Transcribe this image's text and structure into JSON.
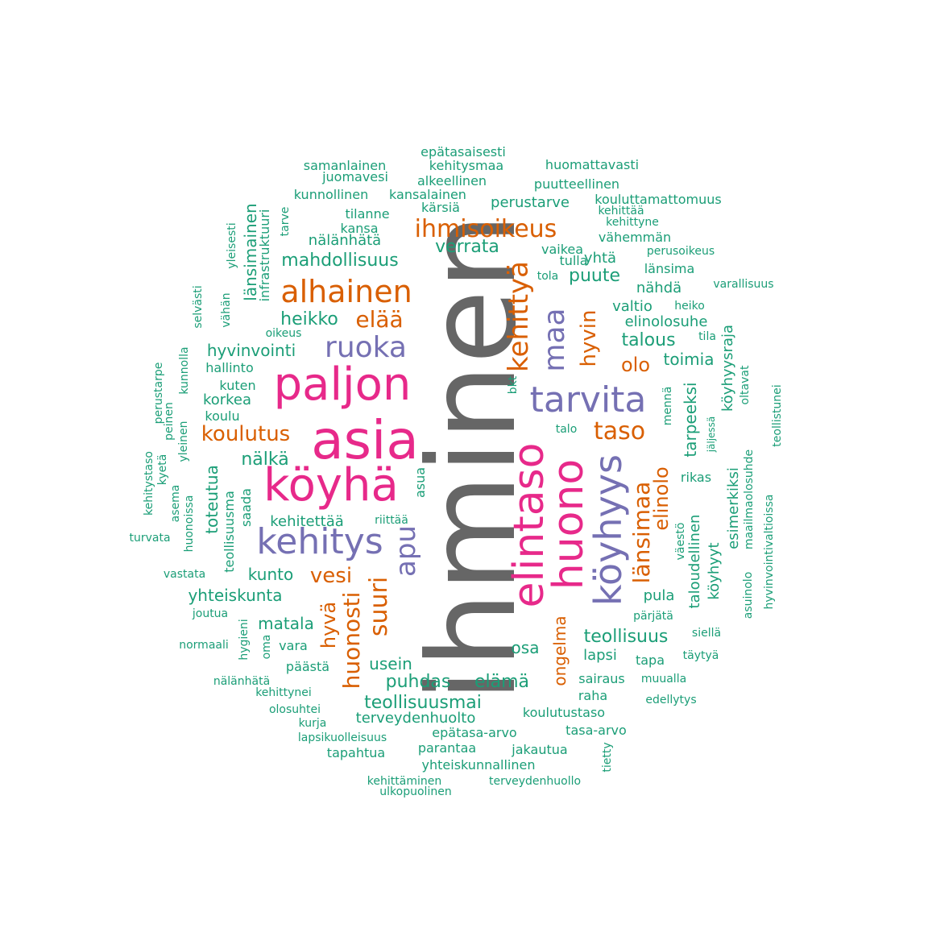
{
  "colors": {
    "gray": "#666666",
    "pink": "#e7298a",
    "purple": "#7570b3",
    "orange": "#d95f02",
    "teal": "#1b9e77"
  },
  "words": [
    "ihminen",
    "asia",
    "köyhä",
    "paljon",
    "elintaso",
    "huono",
    "köyhyys",
    "tarvita",
    "kehitys",
    "alhainen",
    "ruoka",
    "kehittyä",
    "maa",
    "apu",
    "ihmisoikeus",
    "länsimaa",
    "suuri",
    "hyvin",
    "huonosti",
    "taso",
    "elää",
    "koulutus",
    "vesi",
    "elinolo",
    "olo",
    "hyvä",
    "ongelma",
    "nälkä",
    "puhdas",
    "teollisuus",
    "mahdollisuus",
    "talous",
    "verrata",
    "heikko",
    "hyvinvointi",
    "toimia",
    "puute",
    "teollisuusmai",
    "elämä",
    "kunto",
    "yhteiskunta",
    "matala",
    "osa",
    "perustarve",
    "tarpeeksi",
    "valtio",
    "elinolosuhe",
    "nähdä",
    "usein",
    "lapsi",
    "korkea",
    "kehitettää",
    "terveydenhuolto",
    "toteutua",
    "länsimainen",
    "köyhyysraja",
    "esimerkiksi",
    "taloudellinen",
    "pula",
    "köyhyyt",
    "yhtä",
    "vähemmän",
    "koulutustaso",
    "rikas",
    "tilanne",
    "kansalainen",
    "nälänhätä",
    "epätasa-arvo",
    "infrastruktuuri",
    "mennä",
    "koulu",
    "hallinto",
    "kuten",
    "tapa",
    "raha",
    "sairaus",
    "vara",
    "tasa-arvo",
    "jakautua",
    "yhteiskunnallinen",
    "muualla",
    "edellytys",
    "päästä",
    "teollisuusma",
    "saada",
    "asua",
    "oltavat",
    "kärsiä",
    "vaikea",
    "tulla",
    "tola",
    "puutteellinen",
    "kehittää",
    "kehittyne",
    "kouluttamattomuus",
    "huomattavasti",
    "kehitysmaa",
    "alkeellinen",
    "epätasaisesti",
    "samanlainen",
    "juomavesi",
    "kunnollinen",
    "kansa",
    "tarve",
    "yleisesti",
    "vähän",
    "selvästi",
    "oikeus",
    "länsima",
    "perusoikeus",
    "varallisuus",
    "heiko",
    "tila",
    "talo",
    "bkt",
    "riittää",
    "pärjätä",
    "siellä",
    "täytyä",
    "jäljessä",
    "maailmaolosuhde",
    "asuinolo",
    "hyvinvointivaltioissa",
    "teollistunei",
    "väestö",
    "kunnolla",
    "perustarpe",
    "peinen",
    "yleinen",
    "kyetä",
    "kehitystaso",
    "asema",
    "huonoissa",
    "turvata",
    "vastata",
    "joutua",
    "normaali",
    "hygieni",
    "oma",
    "nälänhätä",
    "kehittynei",
    "olosuhtei",
    "kurja",
    "lapsikuolleisuus",
    "tapahtua",
    "parantaa",
    "kehittäminen",
    "ulkopuolinen",
    "terveydenhuollo",
    "tietty"
  ]
}
